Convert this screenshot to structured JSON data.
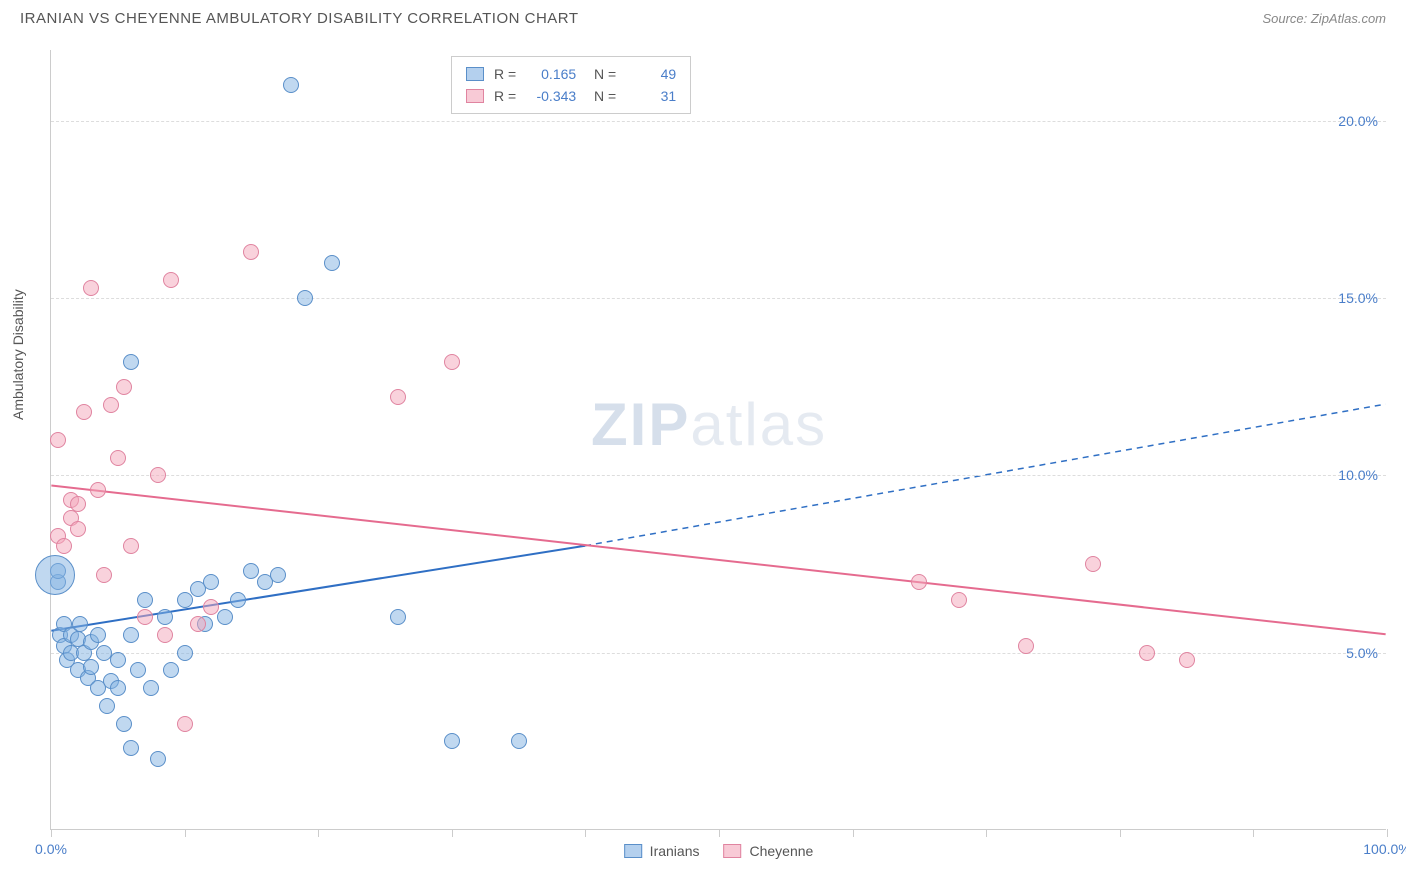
{
  "title": "IRANIAN VS CHEYENNE AMBULATORY DISABILITY CORRELATION CHART",
  "source": "Source: ZipAtlas.com",
  "y_axis_label": "Ambulatory Disability",
  "watermark": {
    "bold": "ZIP",
    "light": "atlas"
  },
  "chart": {
    "type": "scatter",
    "xlim": [
      0,
      100
    ],
    "ylim": [
      0,
      22
    ],
    "x_ticks": [
      0,
      10,
      20,
      30,
      40,
      50,
      60,
      70,
      80,
      90,
      100
    ],
    "x_tick_labels": {
      "0": "0.0%",
      "100": "100.0%"
    },
    "y_gridlines": [
      5,
      10,
      15,
      20
    ],
    "y_tick_labels": {
      "5": "5.0%",
      "10": "10.0%",
      "15": "15.0%",
      "20": "20.0%"
    },
    "background_color": "#ffffff",
    "grid_color": "#dddddd",
    "axis_color": "#cccccc",
    "label_color": "#4a7ec9",
    "point_radius": 8,
    "series": [
      {
        "name": "Iranians",
        "color_fill": "rgba(130,177,226,0.5)",
        "color_stroke": "#5a8fc9",
        "R": "0.165",
        "N": "49",
        "trend": {
          "x1": 0,
          "y1": 5.6,
          "x2_solid": 40,
          "y2_solid": 8.0,
          "x2_dash": 100,
          "y2_dash": 12.0,
          "color": "#2f6fc4",
          "width": 2
        },
        "points": [
          [
            0.5,
            7.0
          ],
          [
            0.5,
            7.3
          ],
          [
            0.7,
            5.5
          ],
          [
            1.0,
            5.2
          ],
          [
            1.0,
            5.8
          ],
          [
            1.2,
            4.8
          ],
          [
            1.5,
            5.0
          ],
          [
            1.5,
            5.5
          ],
          [
            2.0,
            5.4
          ],
          [
            2.0,
            4.5
          ],
          [
            2.2,
            5.8
          ],
          [
            2.5,
            5.0
          ],
          [
            2.8,
            4.3
          ],
          [
            3.0,
            5.3
          ],
          [
            3.0,
            4.6
          ],
          [
            3.5,
            5.5
          ],
          [
            3.5,
            4.0
          ],
          [
            4.0,
            5.0
          ],
          [
            4.2,
            3.5
          ],
          [
            4.5,
            4.2
          ],
          [
            5.0,
            4.8
          ],
          [
            5.0,
            4.0
          ],
          [
            5.5,
            3.0
          ],
          [
            6.0,
            5.5
          ],
          [
            6.0,
            2.3
          ],
          [
            6.5,
            4.5
          ],
          [
            7.0,
            6.5
          ],
          [
            7.5,
            4.0
          ],
          [
            8.0,
            2.0
          ],
          [
            8.5,
            6.0
          ],
          [
            9.0,
            4.5
          ],
          [
            10.0,
            6.5
          ],
          [
            10.0,
            5.0
          ],
          [
            11.0,
            6.8
          ],
          [
            11.5,
            5.8
          ],
          [
            12.0,
            7.0
          ],
          [
            13.0,
            6.0
          ],
          [
            14.0,
            6.5
          ],
          [
            15.0,
            7.3
          ],
          [
            16.0,
            7.0
          ],
          [
            17.0,
            7.2
          ],
          [
            18.0,
            21.0
          ],
          [
            19.0,
            15.0
          ],
          [
            21.0,
            16.0
          ],
          [
            26.0,
            6.0
          ],
          [
            30.0,
            2.5
          ],
          [
            35.0,
            2.5
          ],
          [
            6.0,
            13.2
          ],
          [
            0.3,
            7.2,
            20
          ]
        ]
      },
      {
        "name": "Cheyenne",
        "color_fill": "rgba(244,166,186,0.5)",
        "color_stroke": "#e084a0",
        "R": "-0.343",
        "N": "31",
        "trend": {
          "x1": 0,
          "y1": 9.7,
          "x2_solid": 100,
          "y2_solid": 5.5,
          "color": "#e56b8f",
          "width": 2
        },
        "points": [
          [
            0.5,
            8.3
          ],
          [
            0.5,
            11.0
          ],
          [
            1.0,
            8.0
          ],
          [
            1.5,
            8.8
          ],
          [
            1.5,
            9.3
          ],
          [
            2.0,
            8.5
          ],
          [
            2.0,
            9.2
          ],
          [
            2.5,
            11.8
          ],
          [
            3.0,
            15.3
          ],
          [
            3.5,
            9.6
          ],
          [
            4.0,
            7.2
          ],
          [
            4.5,
            12.0
          ],
          [
            5.0,
            10.5
          ],
          [
            5.5,
            12.5
          ],
          [
            6.0,
            8.0
          ],
          [
            7.0,
            6.0
          ],
          [
            8.0,
            10.0
          ],
          [
            8.5,
            5.5
          ],
          [
            9.0,
            15.5
          ],
          [
            10.0,
            3.0
          ],
          [
            11.0,
            5.8
          ],
          [
            12.0,
            6.3
          ],
          [
            15.0,
            16.3
          ],
          [
            26.0,
            12.2
          ],
          [
            30.0,
            13.2
          ],
          [
            65.0,
            7.0
          ],
          [
            68.0,
            6.5
          ],
          [
            73.0,
            5.2
          ],
          [
            78.0,
            7.5
          ],
          [
            82.0,
            5.0
          ],
          [
            85.0,
            4.8
          ]
        ]
      }
    ]
  },
  "legend_bottom": [
    "Iranians",
    "Cheyenne"
  ]
}
